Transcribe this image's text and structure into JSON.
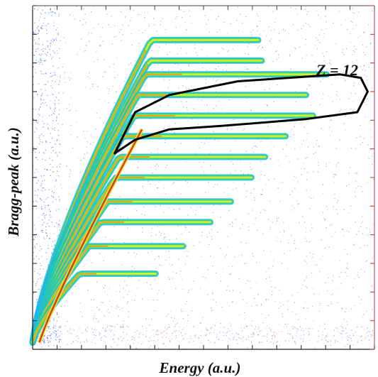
{
  "chart_data": {
    "type": "heatmap",
    "title": "",
    "xlabel": "Energy (a.u.)",
    "ylabel": "Bragg-peak (a.u.)",
    "grid": false,
    "colormap": [
      "#2a4fd8",
      "#1fb8e6",
      "#26d87a",
      "#e6ef2a",
      "#f38a1c",
      "#d81f12"
    ],
    "annotations": [
      {
        "text": "Z = 12",
        "x": 0.89,
        "y": 0.9
      }
    ],
    "cut_region": {
      "label": "Z = 12",
      "color": "#000000",
      "points": [
        [
          0.24,
          0.57
        ],
        [
          0.3,
          0.69
        ],
        [
          0.4,
          0.74
        ],
        [
          0.6,
          0.78
        ],
        [
          0.9,
          0.8
        ],
        [
          0.96,
          0.79
        ],
        [
          0.98,
          0.75
        ],
        [
          0.95,
          0.69
        ],
        [
          0.8,
          0.67
        ],
        [
          0.55,
          0.65
        ],
        [
          0.4,
          0.64
        ],
        [
          0.3,
          0.61
        ]
      ]
    },
    "bands": [
      {
        "name": "",
        "x_end": 0.66,
        "peak": 0.63,
        "tip_y": 0.9,
        "n": 60
      },
      {
        "name": "",
        "x_end": 0.67,
        "peak": 0.62,
        "tip_y": 0.84,
        "n": 60
      },
      {
        "name": "",
        "x_end": 0.86,
        "peak": 0.6,
        "tip_y": 0.8,
        "n": 85
      },
      {
        "name": "",
        "x_end": 0.8,
        "peak": 0.56,
        "tip_y": 0.74,
        "n": 75
      },
      {
        "name": "",
        "x_end": 0.82,
        "peak": 0.54,
        "tip_y": 0.68,
        "n": 75
      },
      {
        "name": "",
        "x_end": 0.74,
        "peak": 0.48,
        "tip_y": 0.62,
        "n": 65
      },
      {
        "name": "",
        "x_end": 0.68,
        "peak": 0.46,
        "tip_y": 0.56,
        "n": 60
      },
      {
        "name": "",
        "x_end": 0.64,
        "peak": 0.44,
        "tip_y": 0.5,
        "n": 55
      },
      {
        "name": "",
        "x_end": 0.58,
        "peak": 0.4,
        "tip_y": 0.43,
        "n": 50
      },
      {
        "name": "",
        "x_end": 0.52,
        "peak": 0.36,
        "tip_y": 0.37,
        "n": 45
      },
      {
        "name": "",
        "x_end": 0.44,
        "peak": 0.3,
        "tip_y": 0.3,
        "n": 40
      },
      {
        "name": "",
        "x_end": 0.36,
        "peak": 0.25,
        "tip_y": 0.22,
        "n": 35
      }
    ]
  }
}
